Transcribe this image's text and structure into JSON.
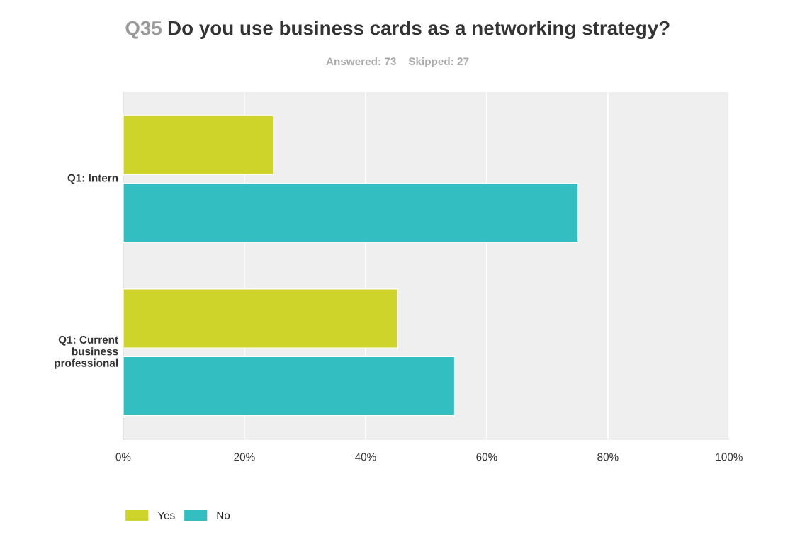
{
  "chart_data": {
    "type": "bar",
    "orientation": "horizontal",
    "title": "Q35 Do you use business cards as a networking strategy?",
    "subtitle": "Answered: 73    Skipped: 27",
    "categories": [
      "Q1: Intern",
      "Q1: Current business professional"
    ],
    "series": [
      {
        "name": "Yes",
        "color": "#cfd42a",
        "values": [
          24.8,
          45.3
        ]
      },
      {
        "name": "No",
        "color": "#33bfc1",
        "values": [
          75.1,
          54.7
        ]
      }
    ],
    "xlim": [
      0,
      100
    ],
    "xticks": [
      {
        "value": 0,
        "label": "0%"
      },
      {
        "value": 20,
        "label": "20%"
      },
      {
        "value": 40,
        "label": "40%"
      },
      {
        "value": 60,
        "label": "60%"
      },
      {
        "value": 80,
        "label": "80%"
      },
      {
        "value": 100,
        "label": "100%"
      }
    ],
    "grid": "x",
    "legend": "bottom left"
  }
}
